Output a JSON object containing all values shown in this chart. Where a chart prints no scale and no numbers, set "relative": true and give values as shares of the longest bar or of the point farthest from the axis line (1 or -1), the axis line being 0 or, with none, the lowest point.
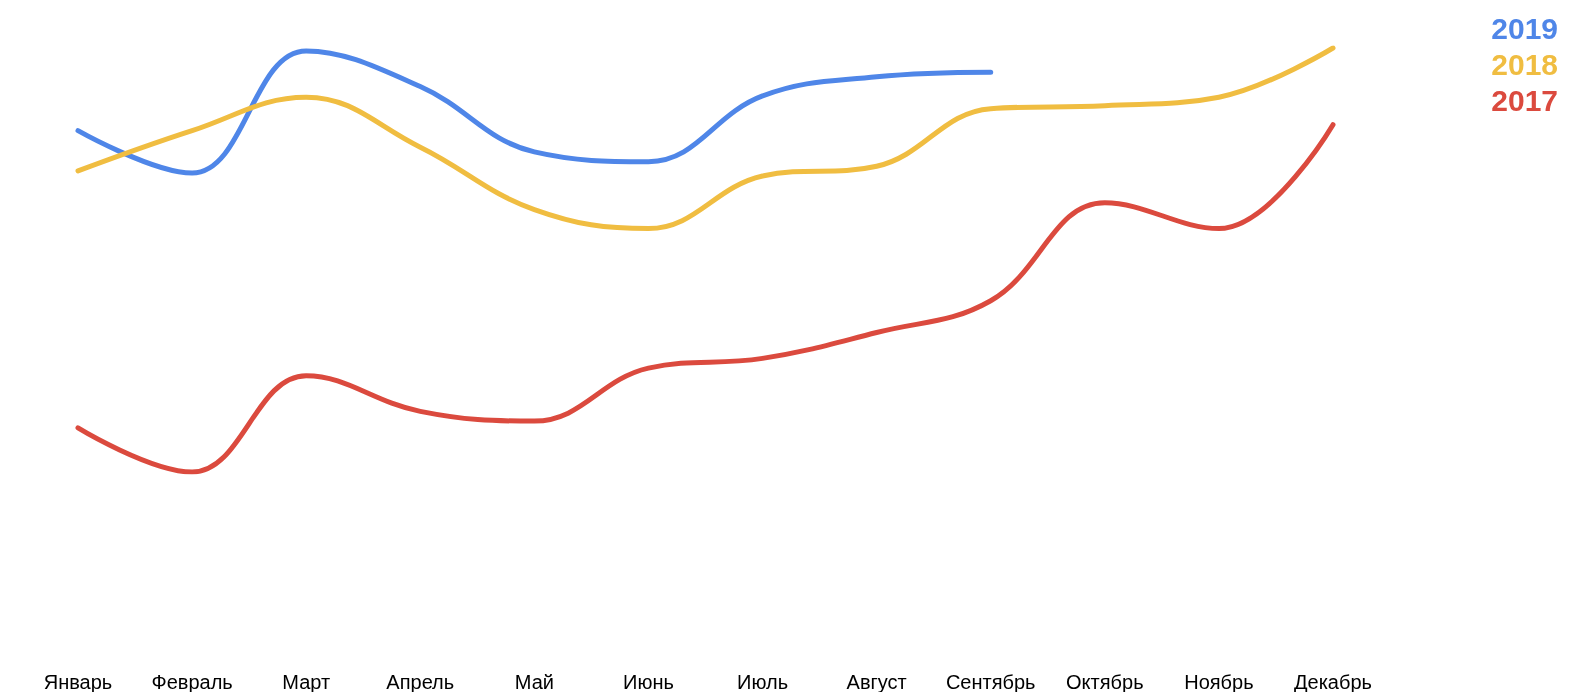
{
  "chart_data": {
    "type": "line",
    "relative": true,
    "categories": [
      "Январь",
      "Февраль",
      "Март",
      "Апрель",
      "Май",
      "Июнь",
      "Июль",
      "Август",
      "Сентябрь",
      "Октябрь",
      "Ноябрь",
      "Декабрь"
    ],
    "series": [
      {
        "name": "2019",
        "color": "#4f86e8",
        "values": [
          0.805,
          0.705,
          0.993,
          0.909,
          0.755,
          0.732,
          0.887,
          0.932,
          0.943,
          null,
          null,
          null
        ]
      },
      {
        "name": "2018",
        "color": "#f0bd41",
        "values": [
          0.71,
          0.805,
          0.884,
          0.766,
          0.619,
          0.574,
          0.698,
          0.721,
          0.857,
          0.864,
          0.884,
          1
        ]
      },
      {
        "name": "2017",
        "color": "#db4a3e",
        "values": [
          0.104,
          0,
          0.227,
          0.143,
          0.12,
          0.245,
          0.268,
          0.329,
          0.404,
          0.635,
          0.574,
          0.819
        ]
      }
    ],
    "legend": "top right",
    "grid": false,
    "marker": "none",
    "line_style": "solid"
  }
}
